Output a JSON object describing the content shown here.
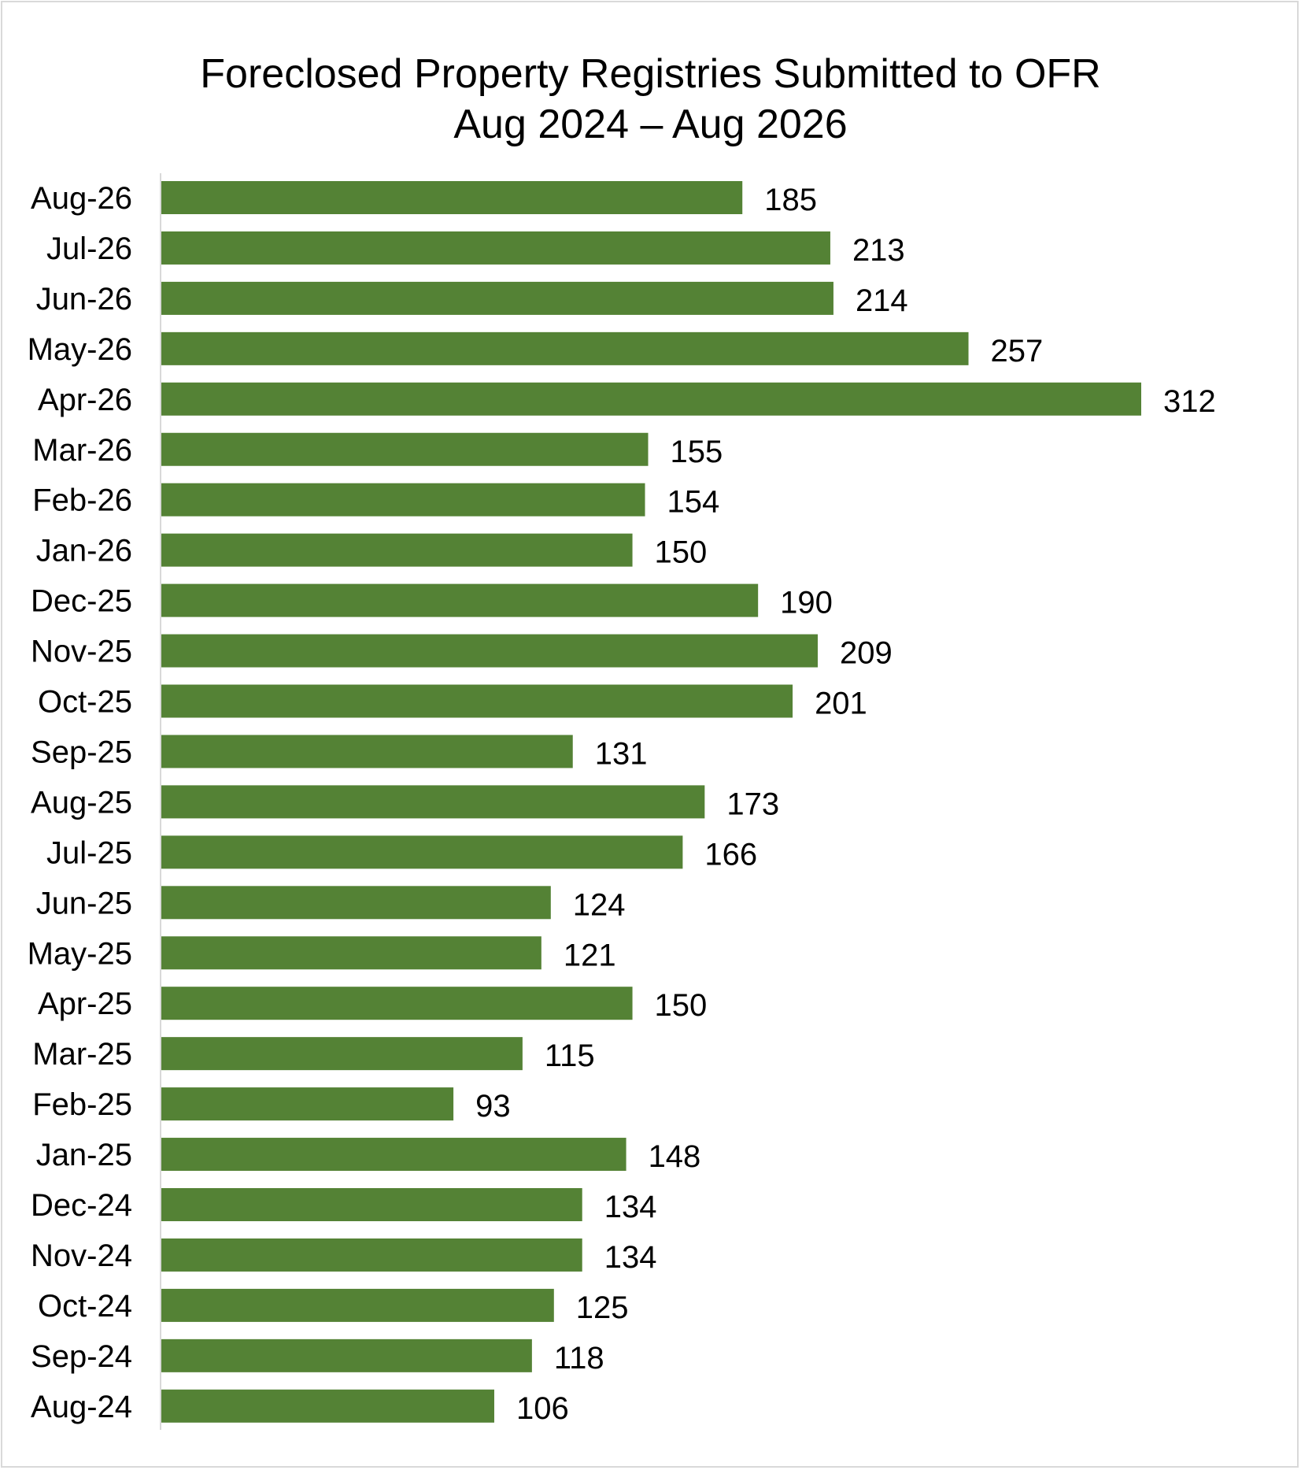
{
  "chart_data": {
    "type": "bar",
    "orientation": "horizontal",
    "title": "Foreclosed Property Registries Submitted to OFR",
    "subtitle": "Aug 2024 – Aug 2026",
    "categories": [
      "Aug-26",
      "Jul-26",
      "Jun-26",
      "May-26",
      "Apr-26",
      "Mar-26",
      "Feb-26",
      "Jan-26",
      "Dec-25",
      "Nov-25",
      "Oct-25",
      "Sep-25",
      "Aug-25",
      "Jul-25",
      "Jun-25",
      "May-25",
      "Apr-25",
      "Mar-25",
      "Feb-25",
      "Jan-25",
      "Dec-24",
      "Nov-24",
      "Oct-24",
      "Sep-24",
      "Aug-24"
    ],
    "values": [
      185,
      213,
      214,
      257,
      312,
      155,
      154,
      150,
      190,
      209,
      201,
      131,
      173,
      166,
      124,
      121,
      150,
      115,
      93,
      148,
      134,
      134,
      125,
      118,
      106
    ],
    "xlim": [
      0,
      312
    ],
    "grid": false,
    "legend": "none",
    "bar_color": "#548235"
  }
}
